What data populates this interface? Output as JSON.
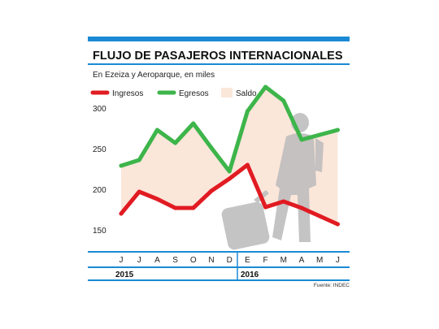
{
  "colors": {
    "accent": "#1a8ad4",
    "ingresos": "#e11b22",
    "egresos": "#3db54a",
    "saldo": "#fbe6da",
    "silhouette": "#bdbdbd"
  },
  "icons": [
    "traveler-with-suitcase-silhouette"
  ],
  "chart_data": {
    "type": "line",
    "title": "FLUJO DE PASAJEROS INTERNACIONALES",
    "subtitle": "En Ezeiza y Aeroparque, en miles",
    "source": "Fuente: INDEC",
    "categories": [
      "J",
      "J",
      "A",
      "S",
      "O",
      "N",
      "D",
      "E",
      "F",
      "M",
      "A",
      "M",
      "J"
    ],
    "years": [
      {
        "label": "2015",
        "start_index": 0
      },
      {
        "label": "2016",
        "start_index": 7
      }
    ],
    "series": [
      {
        "name": "Ingresos",
        "color": "#e11b22",
        "values": [
          170,
          197,
          188,
          177,
          177,
          198,
          213,
          230,
          178,
          185,
          177,
          167,
          157
        ]
      },
      {
        "name": "Egresos",
        "color": "#3db54a",
        "values": [
          229,
          236,
          273,
          257,
          281,
          251,
          222,
          296,
          326,
          309,
          261,
          267,
          273
        ]
      }
    ],
    "area": {
      "name": "Saldo",
      "color": "#fbe6da",
      "between": [
        "Ingresos",
        "Egresos"
      ]
    },
    "y_ticks": [
      150,
      200,
      250,
      300
    ],
    "ylim": [
      133,
      333
    ],
    "grid": false,
    "legend_position": "top-left"
  }
}
